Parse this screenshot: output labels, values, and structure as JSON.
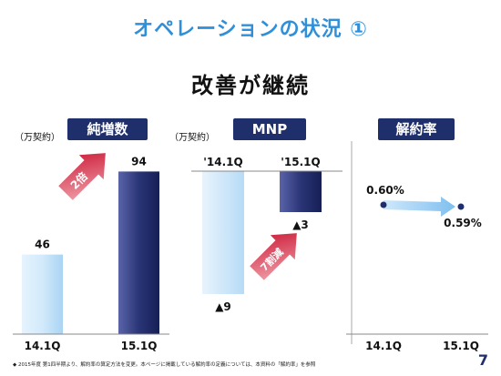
{
  "header": {
    "title": "オペレーションの状況 ①",
    "subtitle": "改善が継続"
  },
  "panels": {
    "net_adds": {
      "header": "純増数",
      "unit": "（万契約）",
      "arrow_label": "2倍"
    },
    "mnp": {
      "header": "MNP",
      "unit": "（万契約）",
      "arrow_label": "7割減"
    },
    "churn": {
      "header": "解約率"
    }
  },
  "footer": {
    "note": "◆ 2015年度 第1四半期より、解約率の算定方法を変更。本ページに掲載している解約率の定義については、本資料の「解約率」を参照",
    "page_number": "7"
  },
  "colors": {
    "dark_navy": "#1f2f6b",
    "light_blue": "#bfe0f8",
    "red": "#c8102e",
    "arrow_blue": "#8ec8f0"
  },
  "chart_data": [
    {
      "type": "bar",
      "title": "純増数",
      "ylabel": "（万契約）",
      "categories": [
        "14.1Q",
        "15.1Q"
      ],
      "values": [
        46,
        94
      ],
      "value_labels": [
        "46",
        "94"
      ],
      "ylim": [
        0,
        100
      ]
    },
    {
      "type": "bar",
      "title": "MNP",
      "ylabel": "（万契約）",
      "categories": [
        "'14.1Q",
        "'15.1Q"
      ],
      "values": [
        -9,
        -3
      ],
      "value_labels": [
        "▲9",
        "▲3"
      ],
      "ylim": [
        -10,
        0
      ]
    },
    {
      "type": "line",
      "title": "解約率",
      "categories": [
        "14.1Q",
        "15.1Q"
      ],
      "values": [
        0.6,
        0.59
      ],
      "value_labels": [
        "0.60%",
        "0.59%"
      ]
    }
  ]
}
